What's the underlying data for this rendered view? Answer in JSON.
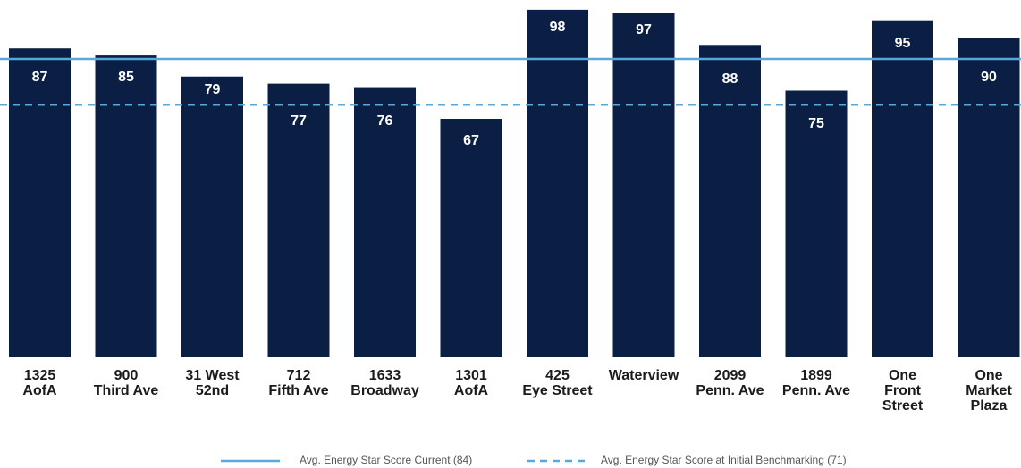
{
  "chart_data": {
    "type": "bar",
    "categories": [
      "1325\nAofA",
      "900\nThird Ave",
      "31 West\n52nd",
      "712\nFifth Ave",
      "1633\nBroadway",
      "1301\nAofA",
      "425\nEye Street",
      "Waterview",
      "2099\nPenn. Ave",
      "1899\nPenn. Ave",
      "One\nFront\nStreet",
      "One\nMarket\nPlaza"
    ],
    "values": [
      87,
      85,
      79,
      77,
      76,
      67,
      98,
      97,
      88,
      75,
      95,
      90
    ],
    "color": "#0b1e43",
    "ylim": [
      0,
      100
    ],
    "reference_lines": [
      {
        "name": "Avg. Energy Star Score Current (84)",
        "value": 84,
        "style": "solid",
        "color": "#5aa7dc"
      },
      {
        "name": "Avg. Energy Star Score at Initial Benchmarking (71)",
        "value": 71,
        "style": "dashed",
        "color": "#5aa7dc"
      }
    ]
  }
}
